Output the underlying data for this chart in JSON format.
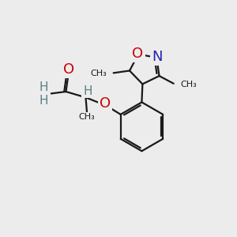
{
  "bg_color": "#ececec",
  "bond_color": "#1a1a1a",
  "bond_width": 1.6,
  "atom_colors": {
    "O": "#cc0000",
    "N": "#2222bb",
    "C": "#1a1a1a",
    "H": "#5a8080"
  },
  "layout": {
    "xlim": [
      0,
      10
    ],
    "ylim": [
      0,
      10
    ]
  }
}
